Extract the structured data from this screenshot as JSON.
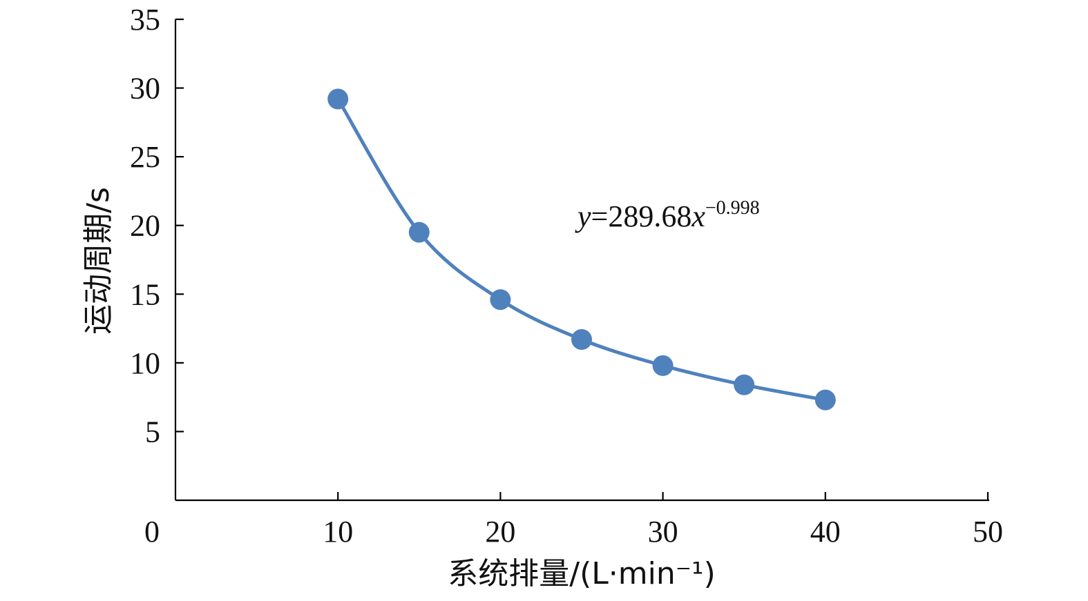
{
  "chart_data": {
    "type": "line",
    "x": [
      10,
      15,
      20,
      25,
      30,
      35,
      40
    ],
    "series": [
      {
        "values": [
          29.2,
          19.5,
          14.6,
          11.7,
          9.8,
          8.4,
          7.3
        ]
      }
    ],
    "xlabel": "系统排量/(L·min⁻¹)",
    "ylabel": "运动周期/s",
    "xlim": [
      0,
      50
    ],
    "ylim": [
      0,
      35
    ],
    "xticks": [
      "0",
      "10",
      "20",
      "30",
      "40",
      "50"
    ],
    "yticks": [
      "5",
      "10",
      "15",
      "20",
      "25",
      "30",
      "35"
    ],
    "annotation": {
      "y_var": "y",
      "coef": "=289.68",
      "x_var": "x",
      "exponent": "−0.998"
    },
    "grid": false,
    "legend": "none",
    "color": "#4f81bd"
  }
}
